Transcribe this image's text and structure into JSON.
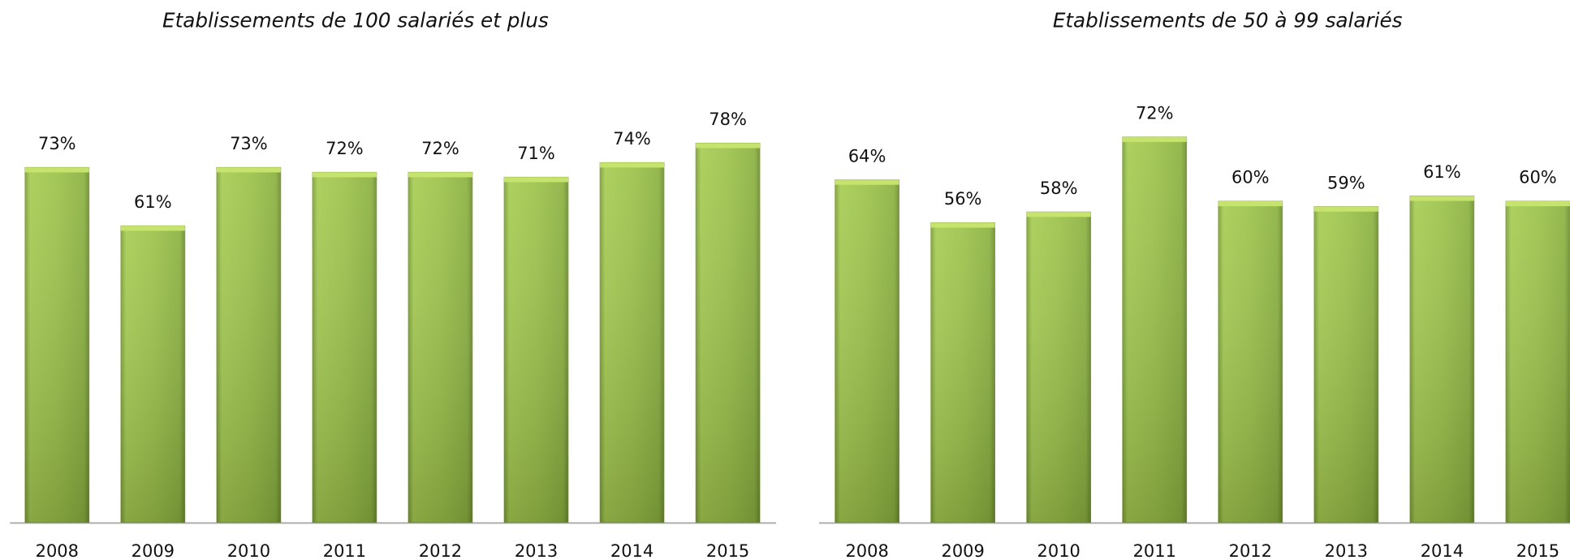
{
  "chart_data": [
    {
      "type": "bar",
      "title": "Etablissements de 100 salariés et plus",
      "categories": [
        "2008",
        "2009",
        "2010",
        "2011",
        "2012",
        "2013",
        "2014",
        "2015"
      ],
      "values": [
        73,
        61,
        73,
        72,
        72,
        71,
        74,
        78
      ],
      "value_labels": [
        "73%",
        "61%",
        "73%",
        "72%",
        "72%",
        "71%",
        "74%",
        "78%"
      ],
      "color": "#9bc449"
    },
    {
      "type": "bar",
      "title": "Etablissements de 50 à 99 salariés",
      "categories": [
        "2008",
        "2009",
        "2010",
        "2011",
        "2012",
        "2013",
        "2014",
        "2015"
      ],
      "values": [
        64,
        56,
        58,
        72,
        60,
        59,
        61,
        60
      ],
      "value_labels": [
        "64%",
        "56%",
        "58%",
        "72%",
        "60%",
        "59%",
        "61%",
        "60%"
      ],
      "color": "#9bc449"
    }
  ]
}
